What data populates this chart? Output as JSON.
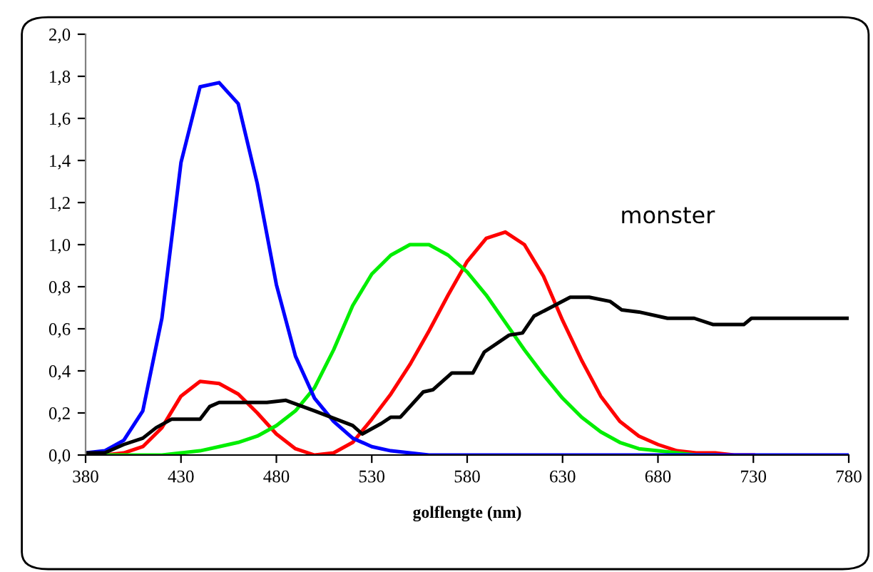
{
  "chart_data": {
    "type": "line",
    "xlabel": "golflengte (nm)",
    "x": [
      380,
      390,
      400,
      410,
      420,
      430,
      440,
      450,
      460,
      470,
      480,
      490,
      500,
      510,
      520,
      530,
      540,
      550,
      560,
      570,
      580,
      590,
      600,
      610,
      620,
      630,
      640,
      650,
      660,
      670,
      680,
      690,
      700,
      710,
      720,
      730,
      740,
      750,
      760,
      770,
      780
    ],
    "series": [
      {
        "color": "#ff0000",
        "values": [
          0.0,
          0.0,
          0.01,
          0.04,
          0.13,
          0.28,
          0.35,
          0.34,
          0.29,
          0.2,
          0.1,
          0.03,
          0.0,
          0.01,
          0.06,
          0.17,
          0.29,
          0.43,
          0.59,
          0.76,
          0.92,
          1.03,
          1.06,
          1.0,
          0.85,
          0.64,
          0.45,
          0.28,
          0.16,
          0.09,
          0.05,
          0.02,
          0.01,
          0.01,
          0.0,
          0.0,
          null,
          null,
          null,
          null,
          null
        ]
      },
      {
        "color": "#00ee00",
        "values": [
          0.0,
          0.0,
          0.0,
          0.0,
          0.0,
          0.01,
          0.02,
          0.04,
          0.06,
          0.09,
          0.14,
          0.21,
          0.32,
          0.5,
          0.71,
          0.86,
          0.95,
          1.0,
          1.0,
          0.95,
          0.87,
          0.76,
          0.63,
          0.5,
          0.38,
          0.27,
          0.18,
          0.11,
          0.06,
          0.03,
          0.02,
          0.01,
          0.0,
          0.0,
          null,
          null,
          null,
          null,
          null,
          null,
          null
        ]
      },
      {
        "color": "#0000ff",
        "values": [
          0.01,
          0.02,
          0.07,
          0.21,
          0.65,
          1.39,
          1.75,
          1.77,
          1.67,
          1.29,
          0.81,
          0.47,
          0.27,
          0.16,
          0.08,
          0.04,
          0.02,
          0.01,
          0.0,
          0.0,
          0.0,
          0.0,
          0.0,
          0.0,
          0.0,
          0.0,
          0.0,
          0.0,
          0.0,
          0.0,
          0.0,
          0.0,
          0.0,
          0.0,
          0.0,
          0.0,
          0.0,
          0.0,
          0.0,
          0.0,
          0.0
        ]
      },
      {
        "name": "monster",
        "color": "#000000",
        "x": [
          380,
          390,
          400,
          410,
          417,
          425,
          440,
          445,
          450,
          475,
          485,
          500,
          520,
          525,
          535,
          540,
          545,
          557,
          562,
          572,
          583,
          589,
          602,
          609,
          615,
          634,
          644,
          655,
          661,
          670,
          685,
          699,
          709,
          725,
          729,
          780
        ],
        "values": [
          0.01,
          0.01,
          0.05,
          0.08,
          0.13,
          0.17,
          0.17,
          0.23,
          0.25,
          0.25,
          0.26,
          0.21,
          0.14,
          0.1,
          0.15,
          0.18,
          0.18,
          0.3,
          0.31,
          0.39,
          0.39,
          0.49,
          0.57,
          0.58,
          0.66,
          0.75,
          0.75,
          0.73,
          0.69,
          0.68,
          0.65,
          0.65,
          0.62,
          0.62,
          0.65,
          0.65
        ]
      }
    ],
    "xlim": [
      380,
      780
    ],
    "xticks": [
      380,
      430,
      480,
      530,
      580,
      630,
      680,
      730,
      780
    ],
    "ylim": [
      0,
      2.0
    ],
    "yticks": [
      {
        "value": 0,
        "label": "0,0"
      },
      {
        "value": 0.2,
        "label": "0,2"
      },
      {
        "value": 0.4,
        "label": "0,4"
      },
      {
        "value": 0.6,
        "label": "0,6"
      },
      {
        "value": 0.8,
        "label": "0,8"
      },
      {
        "value": 1.0,
        "label": "1,0"
      },
      {
        "value": 1.2,
        "label": "1,2"
      },
      {
        "value": 1.4,
        "label": "1,4"
      },
      {
        "value": 1.6,
        "label": "1,6"
      },
      {
        "value": 1.8,
        "label": "1,8"
      },
      {
        "value": 2.0,
        "label": "2,0"
      }
    ],
    "grid": false,
    "legend": false,
    "marker": "none",
    "line_style": "solid"
  }
}
